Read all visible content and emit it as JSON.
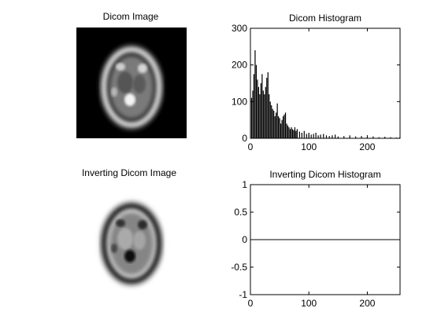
{
  "panels": {
    "dicom_image": {
      "title": "Dicom Image"
    },
    "inverted_image": {
      "title": "Inverting Dicom Image"
    }
  },
  "chart_data": [
    {
      "type": "bar",
      "title": "Dicom Histogram",
      "xlabel": "",
      "ylabel": "",
      "xlim": [
        0,
        256
      ],
      "ylim": [
        0,
        300
      ],
      "xticks": [
        0,
        100,
        200
      ],
      "yticks": [
        0,
        100,
        200,
        300
      ],
      "grid": false,
      "series": [
        {
          "x": [
            2,
            4,
            6,
            8,
            10,
            12,
            14,
            16,
            18,
            20,
            22,
            24,
            26,
            28,
            30,
            32,
            34,
            36,
            38,
            40,
            42,
            44,
            46,
            48,
            50,
            52,
            54,
            56,
            58,
            60,
            62,
            64,
            66,
            68,
            70,
            72,
            74,
            76,
            78,
            80,
            84,
            88,
            92,
            96,
            100,
            104,
            108,
            112,
            116,
            120,
            125,
            130,
            135,
            140,
            145,
            150,
            160,
            170,
            180,
            190,
            200,
            210,
            220,
            230,
            240,
            250,
            255
          ],
          "values": [
            110,
            130,
            175,
            240,
            200,
            160,
            140,
            120,
            150,
            175,
            130,
            120,
            140,
            165,
            180,
            120,
            100,
            90,
            80,
            75,
            60,
            70,
            95,
            60,
            55,
            40,
            50,
            60,
            65,
            70,
            40,
            35,
            30,
            25,
            30,
            25,
            22,
            30,
            20,
            25,
            18,
            15,
            20,
            12,
            15,
            10,
            12,
            15,
            8,
            10,
            12,
            8,
            6,
            8,
            10,
            5,
            6,
            8,
            5,
            6,
            4,
            5,
            3,
            4,
            3,
            2,
            2
          ]
        }
      ]
    },
    {
      "type": "line",
      "title": "Inverting Dicom Histogram",
      "xlabel": "",
      "ylabel": "",
      "xlim": [
        0,
        256
      ],
      "ylim": [
        -1,
        1
      ],
      "xticks": [
        0,
        100,
        200
      ],
      "yticks": [
        -1,
        -0.5,
        0,
        0.5,
        1
      ],
      "grid": false,
      "series": [
        {
          "x": [
            0,
            256
          ],
          "values": [
            0,
            0
          ]
        }
      ]
    }
  ]
}
